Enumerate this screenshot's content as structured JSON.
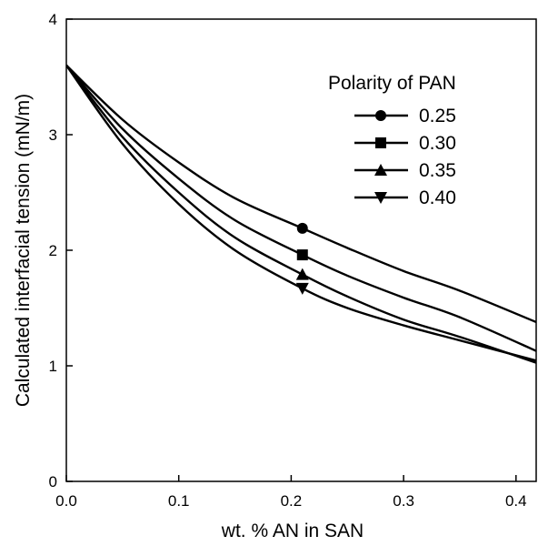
{
  "chart_data": {
    "type": "line",
    "xlabel": "wt. % AN in SAN",
    "ylabel": "Calculated interfacial tension (mN/m)",
    "xlim": [
      0,
      0.42
    ],
    "ylim": [
      0,
      4
    ],
    "xticks": [
      "0.0",
      "0.1",
      "0.2",
      "0.3",
      "0.4"
    ],
    "yticks": [
      "0",
      "1",
      "2",
      "3",
      "4"
    ],
    "grid": false,
    "legend": {
      "title": "Polarity of PAN",
      "placement": "top-right"
    },
    "series": [
      {
        "name": "0.25",
        "marker": "circle",
        "x": [
          0,
          0.05,
          0.1,
          0.15,
          0.21,
          0.25,
          0.3,
          0.35,
          0.42
        ],
        "y": [
          3.6,
          3.13,
          2.76,
          2.45,
          2.19,
          2.02,
          1.82,
          1.65,
          1.37
        ],
        "marker_points": [
          {
            "x": 0.21,
            "y": 2.19
          }
        ]
      },
      {
        "name": "0.30",
        "marker": "square",
        "x": [
          0,
          0.05,
          0.1,
          0.15,
          0.21,
          0.25,
          0.3,
          0.35,
          0.42
        ],
        "y": [
          3.6,
          3.05,
          2.62,
          2.26,
          1.96,
          1.78,
          1.59,
          1.42,
          1.12
        ],
        "marker_points": [
          {
            "x": 0.21,
            "y": 1.96
          }
        ]
      },
      {
        "name": "0.35",
        "marker": "triangle-up",
        "x": [
          0,
          0.05,
          0.1,
          0.15,
          0.21,
          0.25,
          0.3,
          0.35,
          0.42
        ],
        "y": [
          3.6,
          2.98,
          2.5,
          2.11,
          1.79,
          1.6,
          1.4,
          1.25,
          1.02
        ],
        "marker_points": [
          {
            "x": 0.21,
            "y": 1.79
          }
        ]
      },
      {
        "name": "0.40",
        "marker": "triangle-down",
        "x": [
          0,
          0.05,
          0.1,
          0.15,
          0.21,
          0.25,
          0.3,
          0.35,
          0.42
        ],
        "y": [
          3.6,
          2.92,
          2.4,
          2.0,
          1.67,
          1.5,
          1.35,
          1.22,
          1.04
        ],
        "marker_points": [
          {
            "x": 0.21,
            "y": 1.67
          }
        ]
      }
    ]
  }
}
